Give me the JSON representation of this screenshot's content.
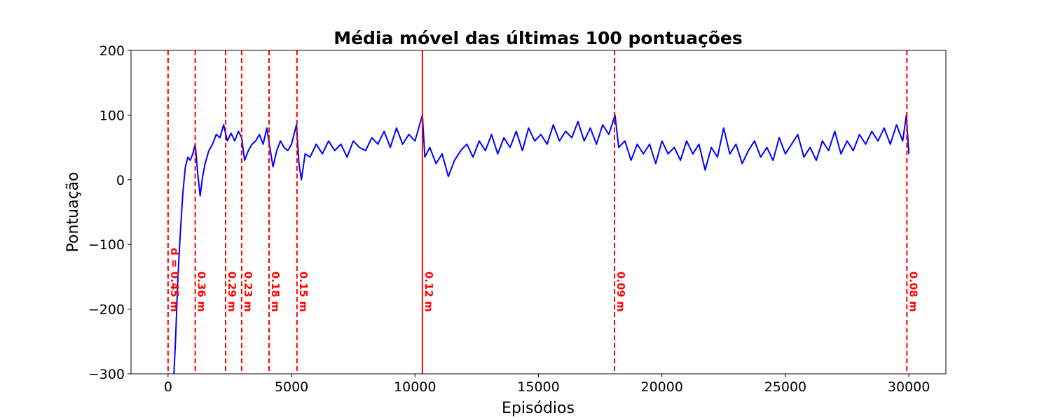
{
  "chart_data": {
    "type": "line",
    "title": "Média móvel das últimas 100 pontuações",
    "xlabel": "Episódios",
    "ylabel": "Pontuação",
    "xlim": [
      -1500,
      31500
    ],
    "ylim": [
      -300,
      200
    ],
    "xticks": [
      0,
      5000,
      10000,
      15000,
      20000,
      25000,
      30000
    ],
    "yticks": [
      {
        "value": -300,
        "label": "−300"
      },
      {
        "value": -200,
        "label": "−200"
      },
      {
        "value": -100,
        "label": "−100"
      },
      0,
      100,
      200
    ],
    "grid": false,
    "x": [
      200,
      300,
      400,
      500,
      600,
      700,
      800,
      900,
      1000,
      1100,
      1200,
      1300,
      1400,
      1500,
      1650,
      1800,
      1950,
      2100,
      2250,
      2400,
      2550,
      2700,
      2850,
      2980,
      3100,
      3250,
      3400,
      3550,
      3700,
      3850,
      4000,
      4100,
      4250,
      4400,
      4550,
      4700,
      4850,
      5000,
      5200,
      5300,
      5400,
      5550,
      5750,
      6000,
      6250,
      6500,
      6750,
      7000,
      7250,
      7500,
      7750,
      8000,
      8250,
      8500,
      8750,
      9000,
      9250,
      9500,
      9750,
      10000,
      10300,
      10400,
      10600,
      10850,
      11100,
      11350,
      11600,
      11850,
      12100,
      12350,
      12600,
      12850,
      13100,
      13350,
      13600,
      13850,
      14100,
      14350,
      14600,
      14850,
      15100,
      15350,
      15600,
      15850,
      16100,
      16350,
      16600,
      16850,
      17100,
      17350,
      17600,
      17850,
      18100,
      18250,
      18500,
      18750,
      19000,
      19250,
      19500,
      19750,
      20000,
      20250,
      20500,
      20750,
      21000,
      21250,
      21500,
      21750,
      22000,
      22250,
      22500,
      22750,
      23000,
      23250,
      23500,
      23750,
      24000,
      24250,
      24500,
      24750,
      25000,
      25250,
      25500,
      25750,
      26000,
      26250,
      26500,
      26750,
      27000,
      27250,
      27500,
      27750,
      28000,
      28250,
      28500,
      28750,
      29000,
      29250,
      29500,
      29750,
      29900,
      30000
    ],
    "series": [
      {
        "name": "Média móvel",
        "color": "#0000ff",
        "values": [
          -330,
          -250,
          -150,
          -80,
          -20,
          20,
          35,
          30,
          40,
          55,
          10,
          -25,
          5,
          25,
          45,
          55,
          70,
          65,
          85,
          60,
          72,
          60,
          75,
          65,
          30,
          45,
          55,
          60,
          70,
          55,
          80,
          55,
          20,
          45,
          60,
          50,
          45,
          55,
          85,
          25,
          0,
          40,
          35,
          55,
          40,
          60,
          45,
          55,
          35,
          60,
          50,
          45,
          65,
          55,
          75,
          50,
          80,
          55,
          70,
          60,
          100,
          35,
          50,
          25,
          40,
          5,
          30,
          45,
          55,
          35,
          60,
          45,
          70,
          40,
          65,
          50,
          75,
          45,
          80,
          60,
          70,
          55,
          85,
          60,
          75,
          65,
          90,
          60,
          80,
          55,
          85,
          70,
          100,
          50,
          60,
          30,
          55,
          40,
          55,
          25,
          60,
          40,
          50,
          30,
          60,
          40,
          55,
          15,
          50,
          35,
          80,
          40,
          55,
          25,
          45,
          60,
          35,
          50,
          30,
          65,
          40,
          55,
          70,
          35,
          50,
          30,
          60,
          45,
          75,
          40,
          60,
          45,
          70,
          55,
          75,
          60,
          80,
          55,
          85,
          60,
          100,
          40
        ]
      }
    ],
    "annotations": [
      {
        "x": 0,
        "label": "d = 0.45 m",
        "style": "dashed"
      },
      {
        "x": 1100,
        "label": "0.36 m",
        "style": "dashed"
      },
      {
        "x": 2330,
        "label": "0.29 m",
        "style": "dashed"
      },
      {
        "x": 2980,
        "label": "0.23 m",
        "style": "dashed"
      },
      {
        "x": 4090,
        "label": "0.18 m",
        "style": "dashed"
      },
      {
        "x": 5220,
        "label": "0.15 m",
        "style": "dashed"
      },
      {
        "x": 10300,
        "label": "0.12 m",
        "style": "solid"
      },
      {
        "x": 18080,
        "label": "0.09 m",
        "style": "dashed"
      },
      {
        "x": 29920,
        "label": "0.08 m",
        "style": "dashed"
      }
    ],
    "annotation_color": "#ff0000"
  }
}
